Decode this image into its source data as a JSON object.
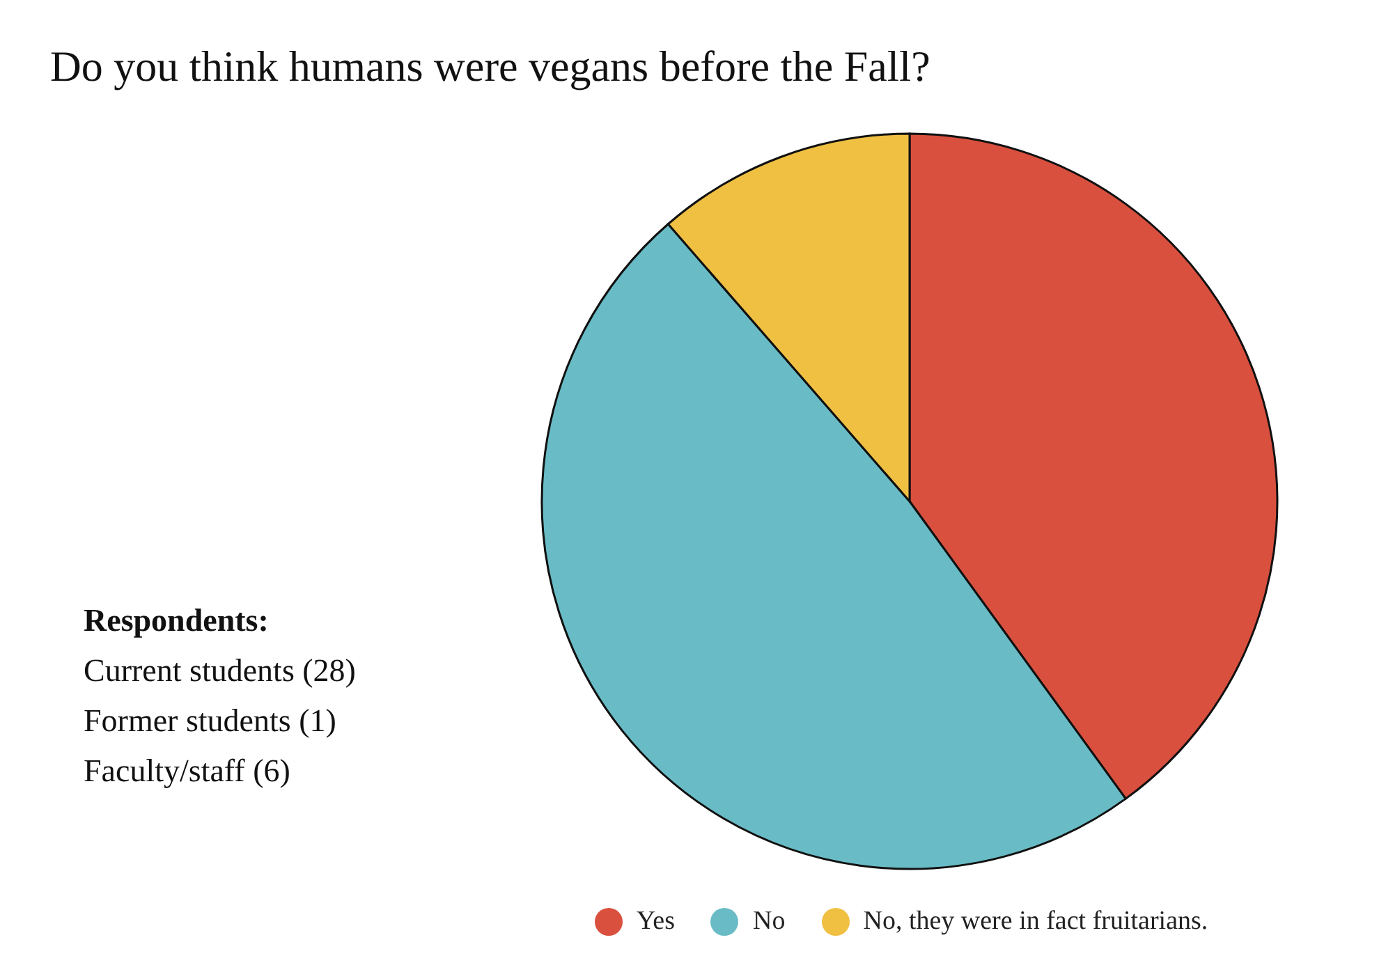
{
  "chart_data": {
    "type": "pie",
    "title": "Do you think humans were vegans before the Fall?",
    "categories": [
      "Yes",
      "No",
      "No, they were in fact fruitarians."
    ],
    "values": [
      40,
      48.6,
      11.4
    ],
    "colors": [
      "#d9503f",
      "#69bcc6",
      "#f0c043"
    ],
    "legend": "bottom",
    "annotations": [
      "Respondents:",
      "Current students (28)",
      "Former students (1)",
      "Faculty/staff (6)"
    ]
  }
}
